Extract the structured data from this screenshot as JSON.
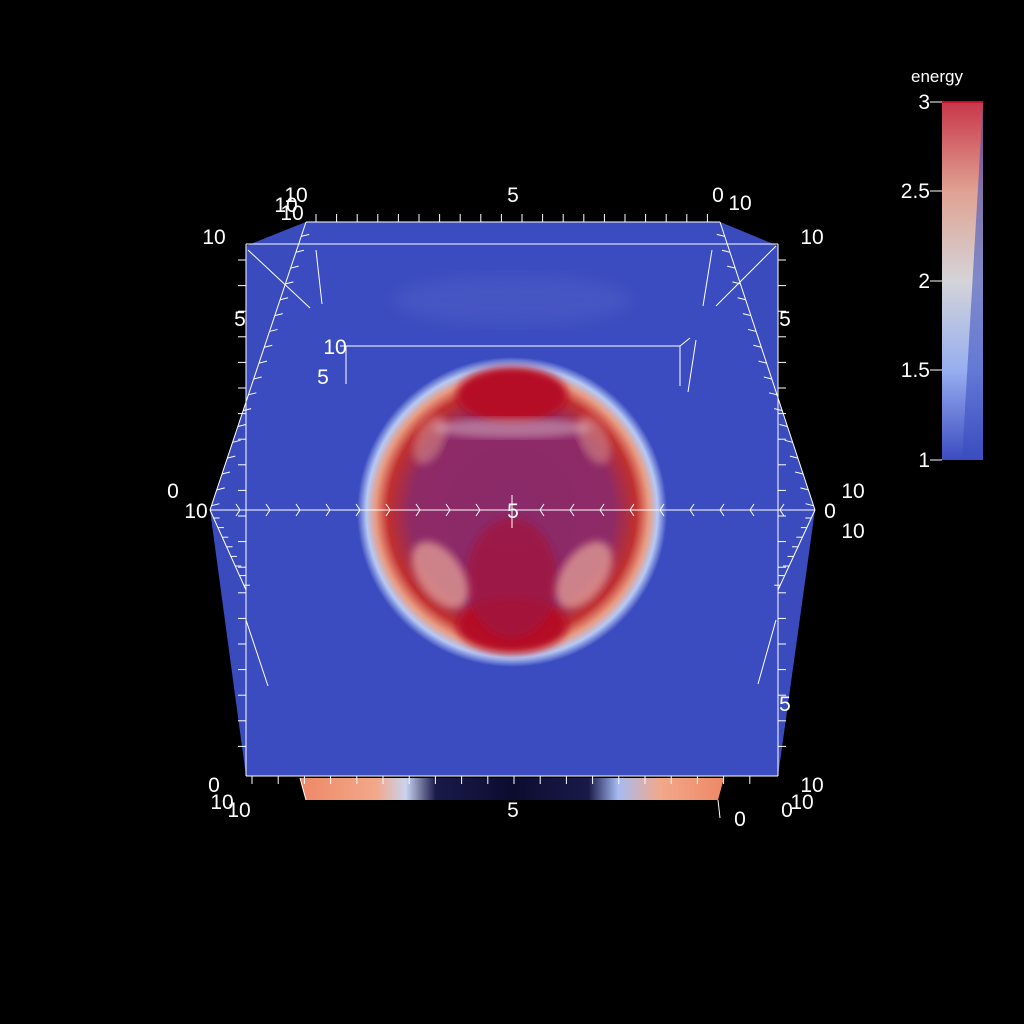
{
  "viewer": {
    "colorbar": {
      "title": "energy",
      "ticks": [
        "3",
        "2.5",
        "2",
        "1.5",
        "1"
      ],
      "colors": [
        "#b40426",
        "#dd8d72",
        "#dddcdc",
        "#7396f5",
        "#3b4cc0"
      ]
    },
    "axes": {
      "top": [
        "10",
        "5",
        "0"
      ],
      "top_inner": [
        "10",
        "10"
      ],
      "left": [
        "10",
        "5",
        "0"
      ],
      "right": [
        "10",
        "5",
        "0"
      ],
      "bottom": [
        "10",
        "5",
        "0"
      ],
      "bottom_inner": [
        "10",
        "10"
      ],
      "mid_left": "10",
      "mid_center": "5",
      "mid_right": "0",
      "inner_box": [
        "10",
        "5"
      ],
      "right_extra": [
        "10",
        "10",
        "10"
      ],
      "bottom_right": [
        "0",
        "10"
      ]
    },
    "background_color": "#000000",
    "plane_color": "#3b4cc0"
  }
}
